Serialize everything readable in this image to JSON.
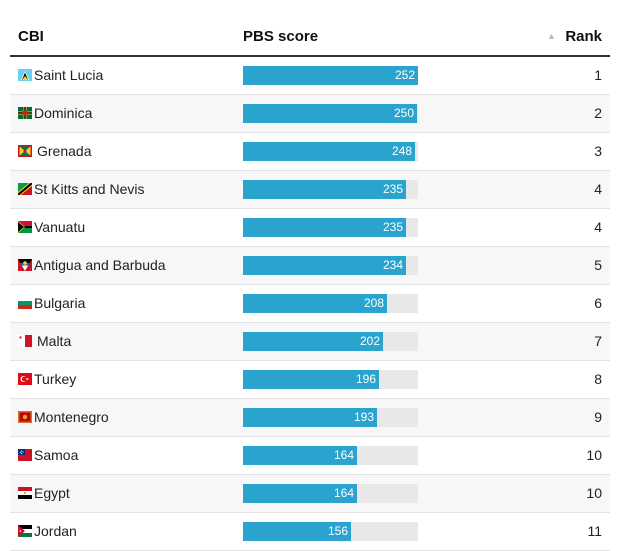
{
  "header": {
    "col_country": "CBI",
    "col_score": "PBS score",
    "sort_indicator": "▲",
    "col_rank": "Rank"
  },
  "score_max": 252,
  "rows": [
    {
      "country": "Saint Lucia",
      "flag": "saint-lucia-flag-icon",
      "score": 252,
      "rank": 1
    },
    {
      "country": "Dominica",
      "flag": "dominica-flag-icon",
      "score": 250,
      "rank": 2
    },
    {
      "country": "Grenada",
      "flag": "grenada-flag-icon",
      "score": 248,
      "rank": 3
    },
    {
      "country": "St Kitts and Nevis",
      "flag": "st-kitts-and-nevis-flag-icon",
      "score": 235,
      "rank": 4
    },
    {
      "country": "Vanuatu",
      "flag": "vanuatu-flag-icon",
      "score": 235,
      "rank": 4
    },
    {
      "country": "Antigua and Barbuda",
      "flag": "antigua-and-barbuda-flag-icon",
      "score": 234,
      "rank": 5
    },
    {
      "country": "Bulgaria",
      "flag": "bulgaria-flag-icon",
      "score": 208,
      "rank": 6
    },
    {
      "country": "Malta",
      "flag": "malta-flag-icon",
      "score": 202,
      "rank": 7
    },
    {
      "country": "Turkey",
      "flag": "turkey-flag-icon",
      "score": 196,
      "rank": 8
    },
    {
      "country": "Montenegro",
      "flag": "montenegro-flag-icon",
      "score": 193,
      "rank": 9
    },
    {
      "country": "Samoa",
      "flag": "samoa-flag-icon",
      "score": 164,
      "rank": 10
    },
    {
      "country": "Egypt",
      "flag": "egypt-flag-icon",
      "score": 164,
      "rank": 10
    },
    {
      "country": "Jordan",
      "flag": "jordan-flag-icon",
      "score": 156,
      "rank": 11
    }
  ],
  "colors": {
    "bar": "#2aa3cf",
    "track": "#e8e8e8",
    "header_rule": "#333333"
  }
}
